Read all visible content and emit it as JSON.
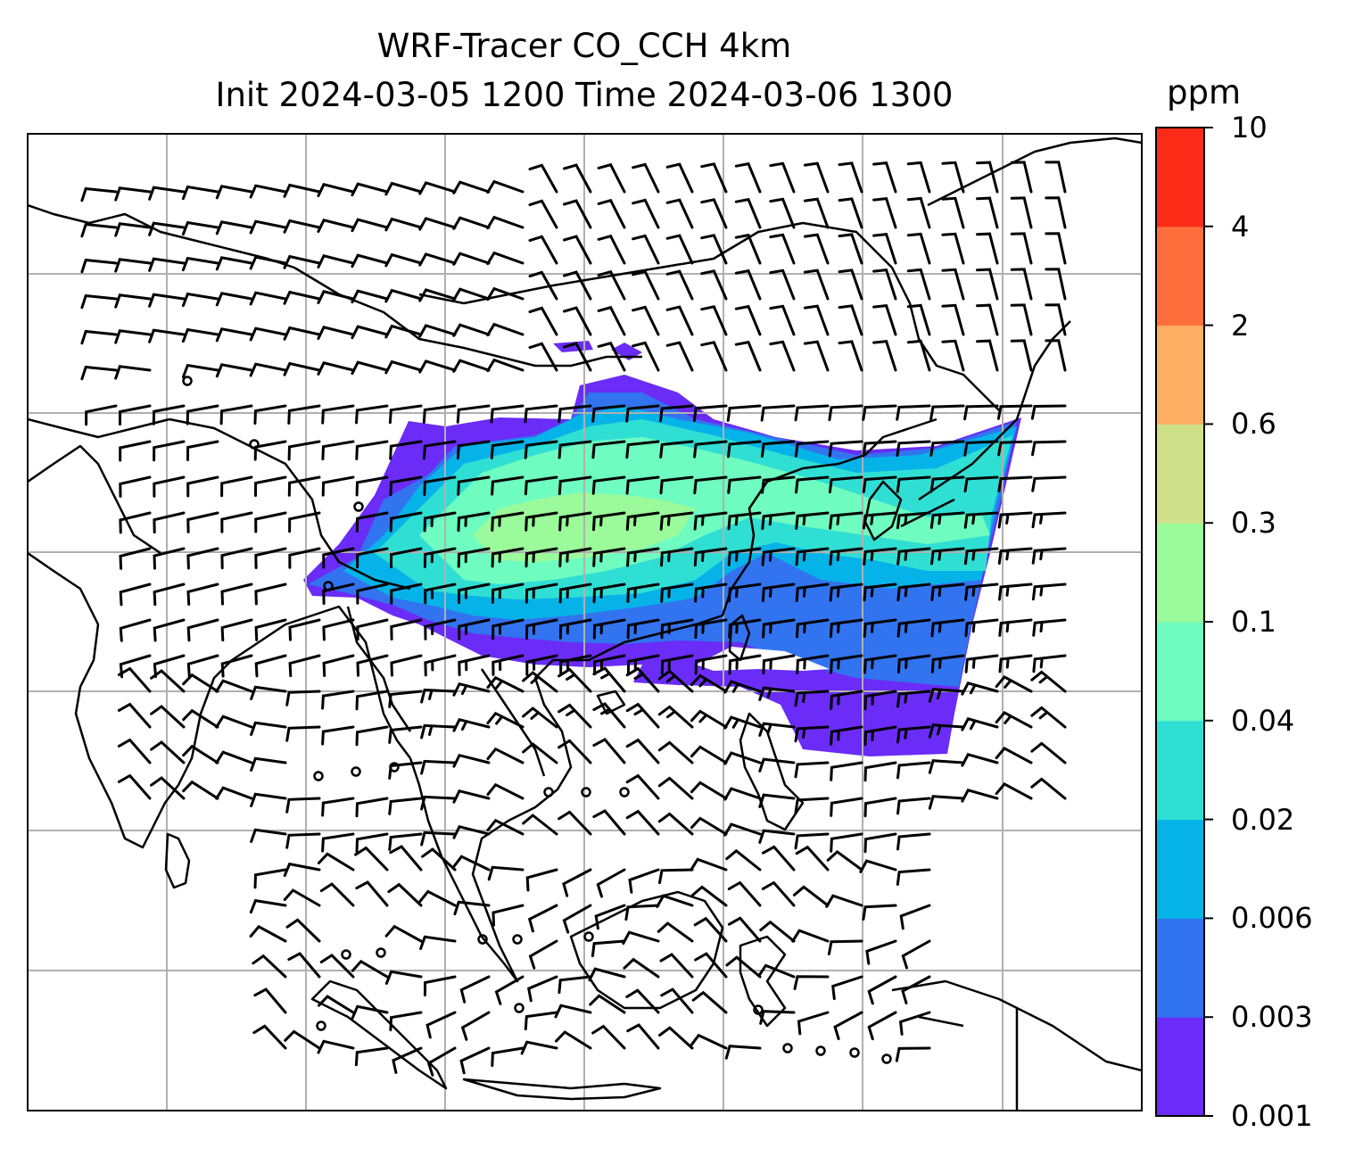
{
  "title": {
    "line1": "WRF-Tracer CO_CCH 4km",
    "line2": "Init 2024-03-05 1200 Time 2024-03-06 1300"
  },
  "colorbar": {
    "unit": "ppm",
    "levels": [
      "0.001",
      "0.003",
      "0.006",
      "0.02",
      "0.04",
      "0.1",
      "0.3",
      "0.6",
      "2",
      "4",
      "10"
    ],
    "colors": [
      "#6a2cf6",
      "#3273f0",
      "#06b3e8",
      "#30dfd3",
      "#6efcc0",
      "#9bfa99",
      "#cfe08a",
      "#fdaf64",
      "#fe6e3c",
      "#fc2b17"
    ]
  },
  "map": {
    "gridline_color": "#b0b0b0",
    "coastline_color": "#000000",
    "wind_barb_color": "#000000"
  }
}
